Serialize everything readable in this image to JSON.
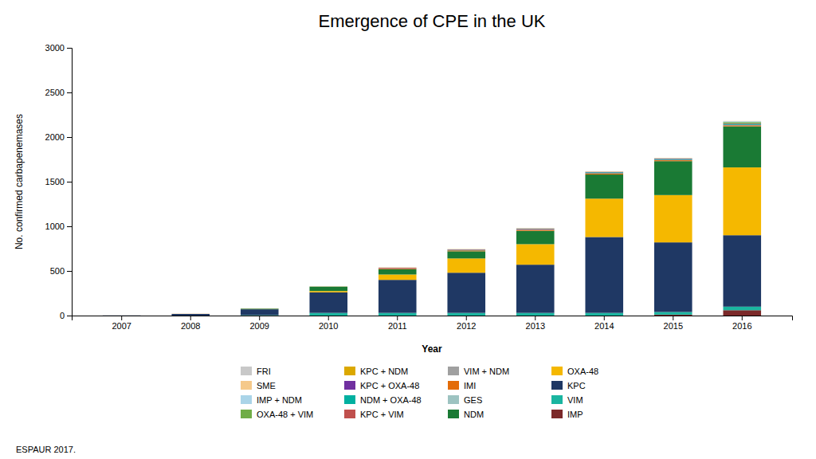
{
  "chart_data": {
    "type": "bar",
    "stacked": true,
    "title": "Emergence of CPE in the UK",
    "x_label": "Year",
    "y_label": "No. confirmed carbapenemases",
    "categories": [
      "2007",
      "2008",
      "2009",
      "2010",
      "2011",
      "2012",
      "2013",
      "2014",
      "2015",
      "2016"
    ],
    "series": [
      {
        "name": "IMP",
        "color": "#7b2929",
        "values": [
          0,
          0,
          0,
          0,
          0,
          0,
          0,
          0,
          10,
          60
        ]
      },
      {
        "name": "VIM",
        "color": "#1ab5a0",
        "values": [
          0,
          0,
          5,
          30,
          30,
          30,
          30,
          30,
          30,
          40
        ]
      },
      {
        "name": "KPC",
        "color": "#1f3864",
        "values": [
          2,
          18,
          65,
          230,
          370,
          450,
          540,
          850,
          780,
          800
        ]
      },
      {
        "name": "OXA-48",
        "color": "#f5b800",
        "values": [
          0,
          0,
          0,
          15,
          60,
          160,
          230,
          430,
          530,
          760
        ]
      },
      {
        "name": "NDM",
        "color": "#1a7a34",
        "values": [
          0,
          0,
          8,
          50,
          60,
          80,
          150,
          270,
          380,
          460
        ]
      },
      {
        "name": "GES",
        "color": "#9dc3c1",
        "values": [
          0,
          0,
          0,
          0,
          0,
          0,
          0,
          0,
          0,
          0
        ]
      },
      {
        "name": "IMI",
        "color": "#e36c09",
        "values": [
          0,
          0,
          0,
          0,
          10,
          10,
          10,
          10,
          10,
          10
        ]
      },
      {
        "name": "VIM + NDM",
        "color": "#a0a0a0",
        "values": [
          0,
          0,
          0,
          0,
          0,
          0,
          0,
          0,
          0,
          0
        ]
      },
      {
        "name": "KPC + VIM",
        "color": "#c0504d",
        "values": [
          0,
          0,
          0,
          0,
          0,
          0,
          5,
          5,
          5,
          5
        ]
      },
      {
        "name": "NDM + OXA-48",
        "color": "#00b0a0",
        "values": [
          0,
          0,
          0,
          0,
          0,
          5,
          5,
          10,
          10,
          10
        ]
      },
      {
        "name": "KPC + OXA-48",
        "color": "#7030a0",
        "values": [
          0,
          0,
          0,
          0,
          5,
          5,
          5,
          5,
          5,
          5
        ]
      },
      {
        "name": "KPC + NDM",
        "color": "#dba800",
        "values": [
          0,
          0,
          0,
          0,
          2,
          2,
          2,
          2,
          2,
          2
        ]
      },
      {
        "name": "OXA-48 + VIM",
        "color": "#70ad47",
        "values": [
          0,
          0,
          0,
          0,
          0,
          0,
          0,
          0,
          0,
          15
        ]
      },
      {
        "name": "IMP + NDM",
        "color": "#aad4e8",
        "values": [
          0,
          0,
          0,
          0,
          0,
          0,
          0,
          0,
          0,
          10
        ]
      },
      {
        "name": "SME",
        "color": "#f5c98a",
        "values": [
          0,
          3,
          3,
          3,
          3,
          3,
          3,
          3,
          3,
          3
        ]
      },
      {
        "name": "FRI",
        "color": "#c8c8c8",
        "values": [
          0,
          0,
          0,
          0,
          0,
          0,
          0,
          0,
          0,
          0
        ]
      }
    ],
    "ylim": [
      0,
      3000
    ],
    "yticks": [
      0,
      500,
      1000,
      1500,
      2000,
      2500,
      3000
    ],
    "grid": false,
    "legend": "bottom",
    "annotations": [
      "ESPAUR 2017."
    ]
  }
}
